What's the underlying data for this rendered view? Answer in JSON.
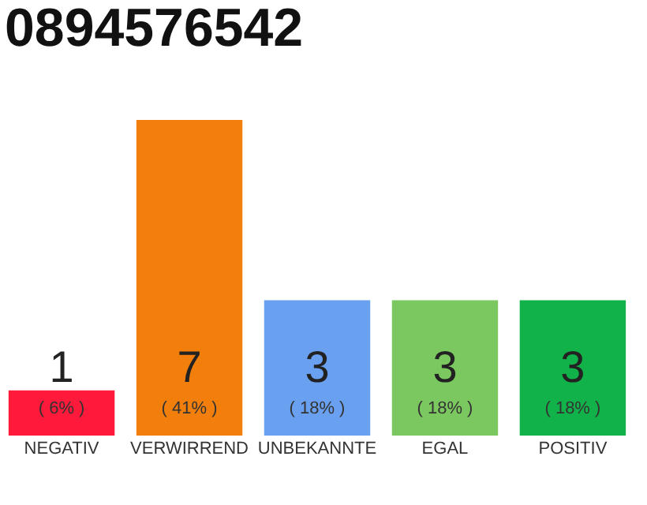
{
  "chart_data": {
    "type": "bar",
    "title": "0894576542",
    "categories": [
      "NEGATIV",
      "VERWIRREND",
      "UNBEKANNTE",
      "EGAL",
      "POSITIV"
    ],
    "values": [
      1,
      7,
      3,
      3,
      3
    ],
    "colors": [
      "#ff1a3c",
      "#f27f0c",
      "#6aa0f0",
      "#7cc860",
      "#12b24a"
    ],
    "annotations": [
      "( 6% )",
      "( 41% )",
      "( 18% )",
      "( 18% )",
      "( 18% )"
    ],
    "data_labels": true
  }
}
